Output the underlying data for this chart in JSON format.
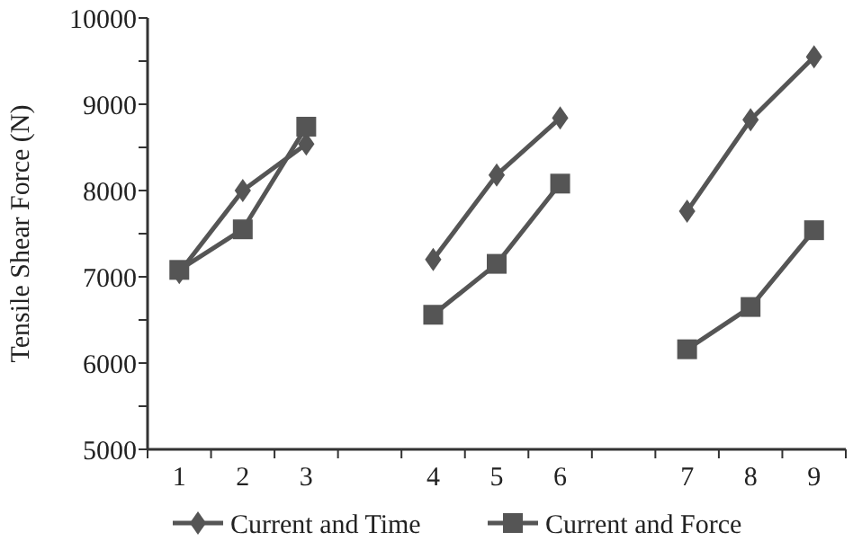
{
  "chart_data": {
    "type": "line",
    "ylabel": "Tensile Shear Force (N)",
    "categories": [
      "1",
      "2",
      "3",
      null,
      "4",
      "5",
      "6",
      null,
      "7",
      "8",
      "9"
    ],
    "series": [
      {
        "name": "Current and Time",
        "color": "#555555",
        "marker": "diamond",
        "values": [
          7050,
          8000,
          8540,
          null,
          7200,
          8180,
          8840,
          null,
          7760,
          8820,
          9550
        ]
      },
      {
        "name": "Current and Force",
        "color": "#555555",
        "marker": "square",
        "values": [
          7080,
          7550,
          8740,
          null,
          6560,
          7150,
          8080,
          null,
          6160,
          6650,
          7540
        ]
      }
    ],
    "ylim": [
      5000,
      10000
    ],
    "yticks": [
      5000,
      {
        "value": 5500,
        "label": null
      },
      6000,
      {
        "value": 6500,
        "label": null
      },
      7000,
      {
        "value": 7500,
        "label": null
      },
      8000,
      {
        "value": 8500,
        "label": null
      },
      9000,
      {
        "value": 9500,
        "label": null
      },
      10000
    ],
    "grid": false,
    "legend": "bottom",
    "line_style": "solid"
  }
}
